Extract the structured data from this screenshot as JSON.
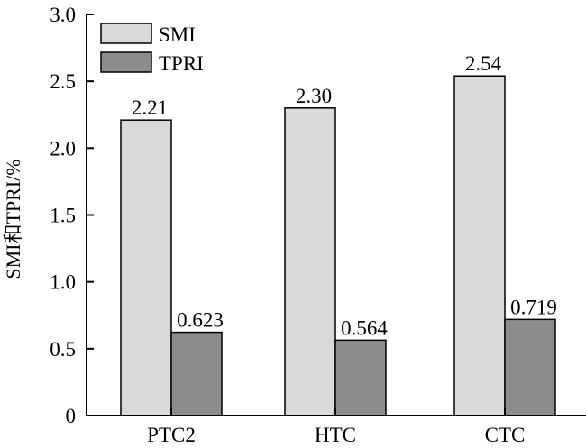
{
  "chart_data": {
    "type": "bar",
    "title": "",
    "xlabel": "",
    "ylabel": "SMI和TPRI/%",
    "categories": [
      "PTC2",
      "HTC",
      "CTC"
    ],
    "series": [
      {
        "name": "SMI",
        "values": [
          2.21,
          2.3,
          2.54
        ],
        "labels": [
          "2.21",
          "2.30",
          "2.54"
        ],
        "color": "#d9d9d9"
      },
      {
        "name": "TPRI",
        "values": [
          0.623,
          0.564,
          0.719
        ],
        "labels": [
          "0.623",
          "0.564",
          "0.719"
        ],
        "color": "#8c8c8c"
      }
    ],
    "ylim": [
      0,
      3.0
    ],
    "yticks": [
      0,
      0.5,
      1.0,
      1.5,
      2.0,
      2.5,
      3.0
    ],
    "ytick_labels": [
      "0",
      "0.5",
      "1.0",
      "1.5",
      "2.0",
      "2.5",
      "3.0"
    ],
    "grid": false,
    "legend_position": "top-left"
  }
}
